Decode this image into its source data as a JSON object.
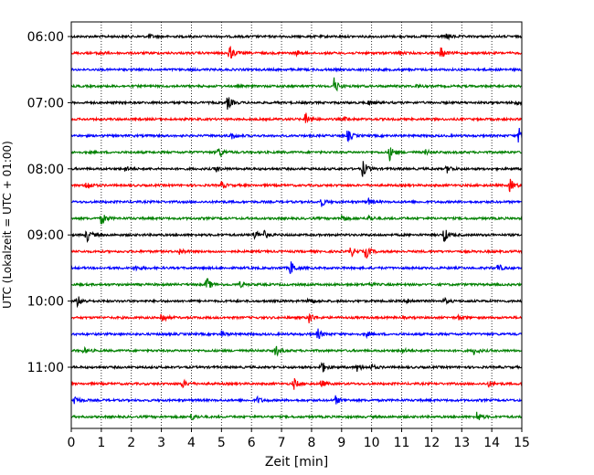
{
  "chart_data": {
    "type": "line",
    "title": "",
    "xlabel": "Zeit  [min]",
    "ylabel": "UTC (Lokalzeit = UTC + 01:00)",
    "xlim": [
      0,
      15
    ],
    "x_ticks": [
      0,
      1,
      2,
      3,
      4,
      5,
      6,
      7,
      8,
      9,
      10,
      11,
      12,
      13,
      14,
      15
    ],
    "y_tick_labels": [
      "06:00",
      "07:00",
      "08:00",
      "09:00",
      "10:00",
      "11:00"
    ],
    "grid": "vertical dotted",
    "trace_interval_min": 15,
    "trace_colors": [
      "#000000",
      "#ff0000",
      "#0000ff",
      "#008000"
    ],
    "traces": [
      {
        "start": "06:00",
        "color": "#000000",
        "events": [
          [
            2.6,
            0.8
          ],
          [
            12.5,
            1.2
          ]
        ]
      },
      {
        "start": "06:15",
        "color": "#ff0000",
        "events": [
          [
            0.9,
            1.0
          ],
          [
            5.25,
            3.5
          ],
          [
            7.5,
            0.8
          ],
          [
            10.9,
            0.6
          ],
          [
            12.3,
            2.2
          ]
        ]
      },
      {
        "start": "06:30",
        "color": "#0000ff",
        "events": []
      },
      {
        "start": "06:45",
        "color": "#008000",
        "events": [
          [
            8.75,
            3.0
          ],
          [
            11.5,
            0.5
          ]
        ]
      },
      {
        "start": "07:00",
        "color": "#000000",
        "events": [
          [
            5.2,
            2.5
          ],
          [
            9.9,
            0.8
          ],
          [
            14.8,
            1.0
          ]
        ]
      },
      {
        "start": "07:15",
        "color": "#ff0000",
        "events": [
          [
            7.8,
            3.0
          ],
          [
            9.1,
            0.6
          ]
        ]
      },
      {
        "start": "07:30",
        "color": "#0000ff",
        "events": [
          [
            5.3,
            1.5
          ],
          [
            9.2,
            2.2
          ],
          [
            14.9,
            3.5
          ]
        ]
      },
      {
        "start": "07:45",
        "color": "#008000",
        "events": [
          [
            4.9,
            2.2
          ],
          [
            10.6,
            2.8
          ],
          [
            11.8,
            0.8
          ]
        ]
      },
      {
        "start": "08:00",
        "color": "#000000",
        "events": [
          [
            1.8,
            1.0
          ],
          [
            4.8,
            1.2
          ],
          [
            9.7,
            3.2
          ],
          [
            12.5,
            1.5
          ]
        ]
      },
      {
        "start": "08:15",
        "color": "#ff0000",
        "events": [
          [
            0.5,
            2.0
          ],
          [
            5.0,
            1.2
          ],
          [
            14.6,
            2.5
          ]
        ]
      },
      {
        "start": "08:30",
        "color": "#0000ff",
        "events": [
          [
            8.3,
            2.0
          ],
          [
            9.9,
            1.2
          ]
        ]
      },
      {
        "start": "08:45",
        "color": "#008000",
        "events": [
          [
            1.0,
            2.5
          ],
          [
            9.0,
            1.5
          ],
          [
            9.9,
            1.2
          ]
        ]
      },
      {
        "start": "09:00",
        "color": "#000000",
        "events": [
          [
            0.5,
            2.8
          ],
          [
            6.1,
            2.0
          ],
          [
            6.4,
            1.5
          ],
          [
            12.4,
            3.0
          ]
        ]
      },
      {
        "start": "09:15",
        "color": "#ff0000",
        "events": [
          [
            3.6,
            1.2
          ],
          [
            9.3,
            2.0
          ],
          [
            9.8,
            2.8
          ]
        ]
      },
      {
        "start": "09:30",
        "color": "#0000ff",
        "events": [
          [
            2.1,
            1.2
          ],
          [
            7.3,
            2.8
          ],
          [
            14.2,
            1.5
          ]
        ]
      },
      {
        "start": "09:45",
        "color": "#008000",
        "events": [
          [
            4.5,
            2.5
          ],
          [
            5.6,
            1.0
          ],
          [
            9.9,
            0.8
          ]
        ]
      },
      {
        "start": "10:00",
        "color": "#000000",
        "events": [
          [
            0.2,
            2.2
          ],
          [
            7.9,
            1.5
          ],
          [
            11.2,
            1.0
          ],
          [
            12.4,
            1.2
          ]
        ]
      },
      {
        "start": "10:15",
        "color": "#ff0000",
        "events": [
          [
            3.0,
            2.2
          ],
          [
            7.9,
            2.5
          ],
          [
            12.9,
            1.0
          ]
        ]
      },
      {
        "start": "10:30",
        "color": "#0000ff",
        "events": [
          [
            5.0,
            1.2
          ],
          [
            8.2,
            2.0
          ],
          [
            9.8,
            1.0
          ]
        ]
      },
      {
        "start": "10:45",
        "color": "#008000",
        "events": [
          [
            0.4,
            1.2
          ],
          [
            6.8,
            2.2
          ],
          [
            11.0,
            1.0
          ],
          [
            13.4,
            1.2
          ]
        ]
      },
      {
        "start": "11:00",
        "color": "#000000",
        "events": [
          [
            8.3,
            3.0
          ],
          [
            9.5,
            1.5
          ],
          [
            10.0,
            1.0
          ]
        ]
      },
      {
        "start": "11:15",
        "color": "#ff0000",
        "events": [
          [
            3.7,
            1.5
          ],
          [
            7.4,
            2.2
          ],
          [
            8.3,
            1.5
          ],
          [
            13.9,
            1.0
          ]
        ]
      },
      {
        "start": "11:30",
        "color": "#0000ff",
        "events": [
          [
            0.1,
            2.0
          ],
          [
            6.2,
            1.2
          ],
          [
            8.8,
            1.5
          ]
        ]
      },
      {
        "start": "11:45",
        "color": "#008000",
        "events": [
          [
            4.0,
            1.2
          ],
          [
            13.5,
            2.0
          ]
        ]
      }
    ]
  }
}
